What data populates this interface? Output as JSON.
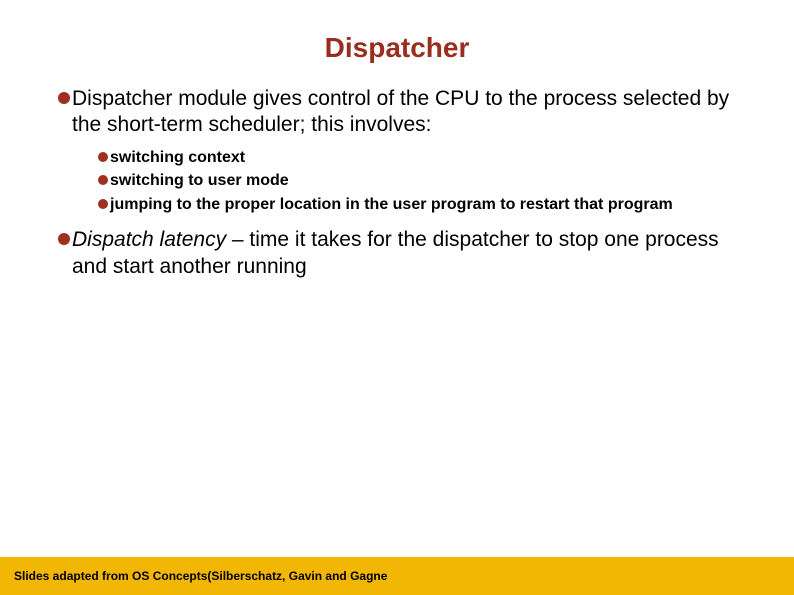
{
  "colors": {
    "title": "#9a2e1e",
    "bullet": "#a02f1f",
    "footer_bg": "#f2b705",
    "text": "#000000",
    "background": "#ffffff"
  },
  "slide": {
    "title": "Dispatcher",
    "bullets_l1": [
      {
        "text": "Dispatcher module gives control of the CPU to the process selected by the short-term scheduler; this involves:",
        "sub": [
          "switching context",
          "switching to user mode",
          "jumping to the proper location in the user program to restart that program"
        ]
      },
      {
        "italic_lead": "Dispatch latency",
        "rest": " – time it takes for the dispatcher to stop one process and start another running"
      }
    ]
  },
  "footer": "Slides adapted from OS Concepts(Silberschatz, Gavin and Gagne"
}
